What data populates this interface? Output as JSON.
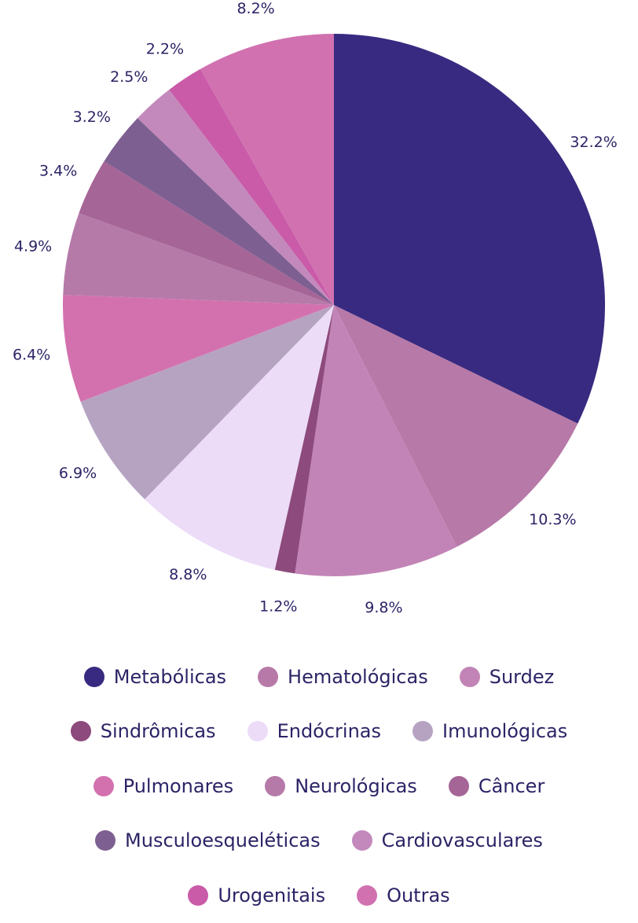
{
  "chart_data": {
    "type": "pie",
    "start_angle_deg": 0,
    "direction": "clockwise",
    "legend_position": "bottom",
    "slices": [
      {
        "name": "Metabólicas",
        "value": 32.2,
        "label": "32.2%",
        "color": "#382a80"
      },
      {
        "name": "Hematológicas",
        "value": 10.3,
        "label": "10.3%",
        "color": "#b779a8"
      },
      {
        "name": "Surdez",
        "value": 9.8,
        "label": "9.8%",
        "color": "#c284b6"
      },
      {
        "name": "Sindrômicas",
        "value": 1.2,
        "label": "1.2%",
        "color": "#8d4a7c"
      },
      {
        "name": "Endócrinas",
        "value": 8.8,
        "label": "8.8%",
        "color": "#ecdcf8"
      },
      {
        "name": "Imunológicas",
        "value": 6.9,
        "label": "6.9%",
        "color": "#b6a3c2"
      },
      {
        "name": "Pulmonares",
        "value": 6.4,
        "label": "6.4%",
        "color": "#d371ae"
      },
      {
        "name": "Neurológicas",
        "value": 4.9,
        "label": "4.9%",
        "color": "#b67aa9"
      },
      {
        "name": "Câncer",
        "value": 3.4,
        "label": "3.4%",
        "color": "#a66597"
      },
      {
        "name": "Musculoesqueléticas",
        "value": 3.2,
        "label": "3.2%",
        "color": "#7d5f91"
      },
      {
        "name": "Cardiovasculares",
        "value": 2.5,
        "label": "2.5%",
        "color": "#c389bc"
      },
      {
        "name": "Urogenitais",
        "value": 2.2,
        "label": "2.2%",
        "color": "#c95ba8"
      },
      {
        "name": "Outras",
        "value": 8.2,
        "label": "8.2%",
        "color": "#d171b0"
      }
    ]
  }
}
